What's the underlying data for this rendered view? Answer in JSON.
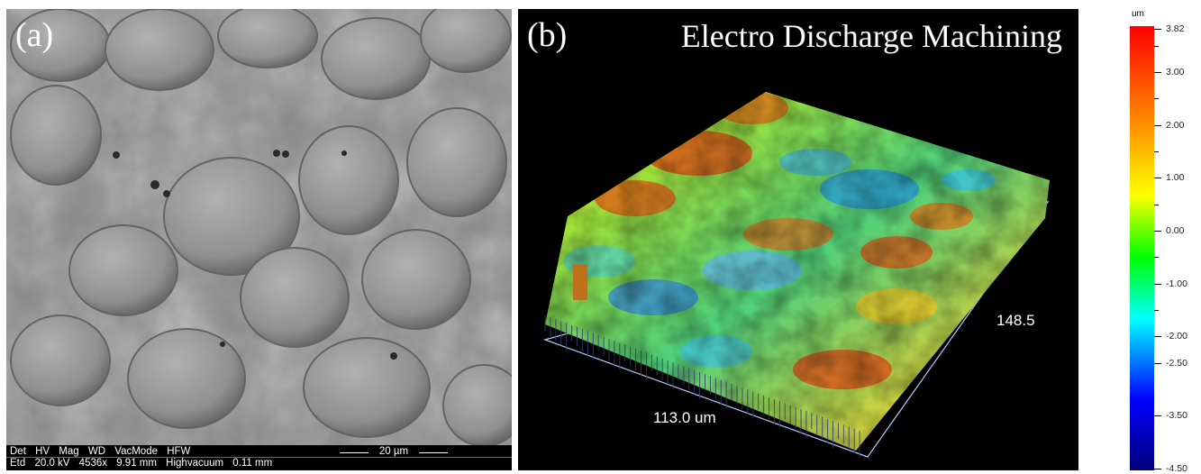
{
  "panel_a": {
    "label": "(a)",
    "info_bar": {
      "headers": [
        "Det",
        "HV",
        "Mag",
        "WD",
        "VacMode",
        "HFW"
      ],
      "values": [
        "Etd",
        "20.0 kV",
        "4536x",
        "9.91 mm",
        "Highvacuum",
        "0.11 mm"
      ],
      "scale_bar": "20 µm"
    }
  },
  "panel_b": {
    "label": "(b)",
    "title": "Electro Discharge Machining",
    "x_dimension": "113.0 um",
    "y_dimension": "148.5"
  },
  "color_scale": {
    "unit": "um",
    "ticks": [
      {
        "label": "3.82",
        "value": 3.82
      },
      {
        "label": "3.00",
        "value": 3.0
      },
      {
        "label": "2.00",
        "value": 2.0
      },
      {
        "label": "1.00",
        "value": 1.0
      },
      {
        "label": "0.00",
        "value": 0.0
      },
      {
        "label": "-1.00",
        "value": -1.0
      },
      {
        "label": "-2.00",
        "value": -2.0
      },
      {
        "label": "-2.50",
        "value": -2.5
      },
      {
        "label": "-3.50",
        "value": -3.5
      },
      {
        "label": "-4.50",
        "value": -4.5
      }
    ],
    "colors": [
      "#ff0000",
      "#ff8000",
      "#ffff00",
      "#00ff00",
      "#00ffff",
      "#0000ff",
      "#00007a"
    ]
  }
}
